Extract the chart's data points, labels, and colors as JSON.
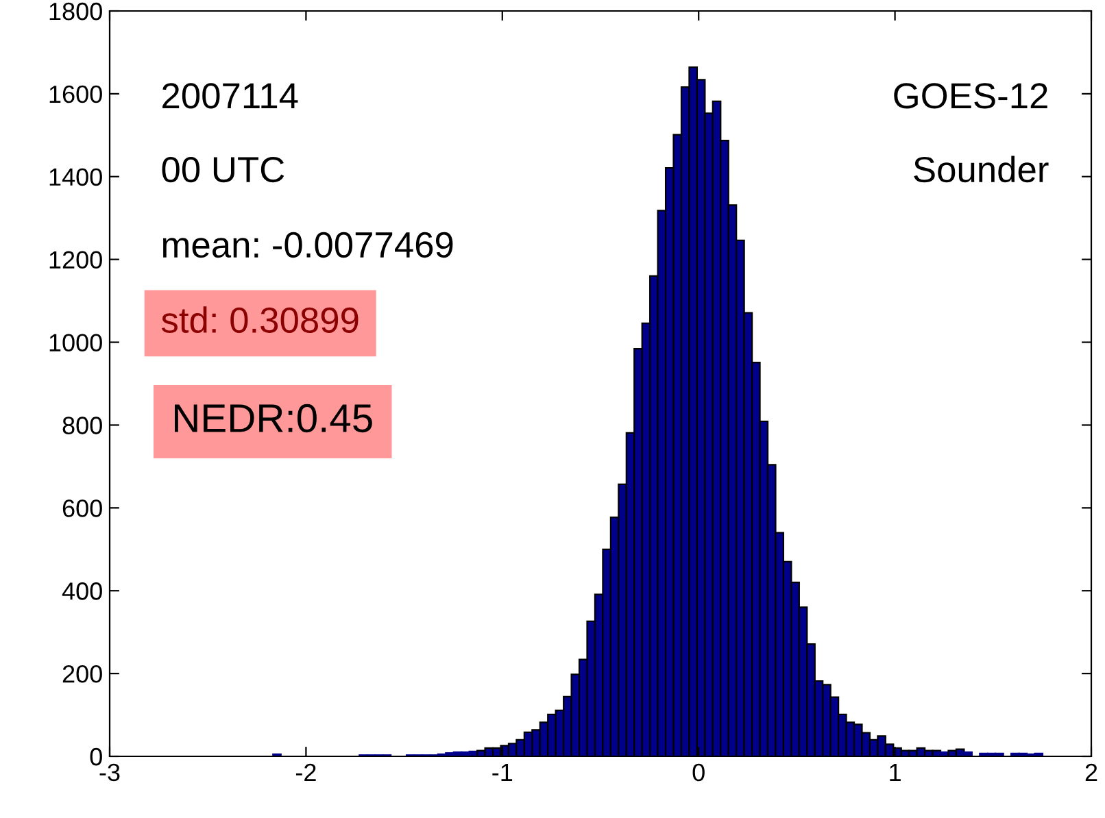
{
  "chart_data": {
    "type": "histogram",
    "bins": [
      -2.168,
      -2.128,
      -2.088,
      -2.048,
      -2.008,
      -1.968,
      -1.928,
      -1.888,
      -1.848,
      -1.808,
      -1.768,
      -1.728,
      -1.688,
      -1.648,
      -1.608,
      -1.568,
      -1.528,
      -1.488,
      -1.448,
      -1.408,
      -1.368,
      -1.328,
      -1.288,
      -1.248,
      -1.208,
      -1.168,
      -1.128,
      -1.088,
      -1.048,
      -1.008,
      -0.968,
      -0.928,
      -0.888,
      -0.848,
      -0.808,
      -0.768,
      -0.728,
      -0.688,
      -0.648,
      -0.608,
      -0.568,
      -0.528,
      -0.488,
      -0.448,
      -0.408,
      -0.368,
      -0.328,
      -0.288,
      -0.248,
      -0.208,
      -0.168,
      -0.128,
      -0.088,
      -0.048,
      -0.008,
      0.032,
      0.072,
      0.112,
      0.152,
      0.192,
      0.232,
      0.272,
      0.312,
      0.352,
      0.392,
      0.432,
      0.472,
      0.512,
      0.552,
      0.592,
      0.632,
      0.672,
      0.712,
      0.752,
      0.792,
      0.832,
      0.872,
      0.912,
      0.952,
      0.992,
      1.032,
      1.072,
      1.112,
      1.152,
      1.192,
      1.232,
      1.272,
      1.312,
      1.352,
      1.392,
      1.432,
      1.472,
      1.512,
      1.552,
      1.592,
      1.632,
      1.672,
      1.712,
      1.752
    ],
    "values": [
      5,
      0,
      0,
      0,
      0,
      0,
      0,
      0,
      0,
      0,
      0,
      3,
      3,
      3,
      3,
      0,
      0,
      3,
      3,
      3,
      3,
      5,
      8,
      10,
      10,
      12,
      14,
      20,
      20,
      26,
      31,
      40,
      58,
      64,
      82,
      101,
      111,
      144,
      198,
      234,
      326,
      391,
      500,
      577,
      657,
      781,
      984,
      1046,
      1160,
      1318,
      1421,
      1501,
      1616,
      1664,
      1634,
      1553,
      1582,
      1487,
      1331,
      1246,
      1071,
      951,
      809,
      704,
      540,
      470,
      420,
      360,
      271,
      182,
      173,
      143,
      101,
      82,
      77,
      57,
      40,
      49,
      29,
      20,
      14,
      14,
      20,
      14,
      14,
      10,
      14,
      17,
      10,
      0,
      7,
      7,
      7,
      0,
      7,
      7,
      5,
      7
    ],
    "color": "#00008b",
    "xlim": [
      -3,
      2
    ],
    "xticks": [
      -3,
      -2,
      -1,
      0,
      1,
      2
    ],
    "ylim": [
      0,
      1800
    ],
    "yticks": [
      0,
      200,
      400,
      600,
      800,
      1000,
      1200,
      1400,
      1600,
      1800
    ],
    "grid": false,
    "annotations": [
      "2007114",
      "00 UTC",
      "mean: -0.0077469",
      "std: 0.30899",
      "NEDR:0.45",
      "GOES-12",
      "Sounder"
    ]
  }
}
